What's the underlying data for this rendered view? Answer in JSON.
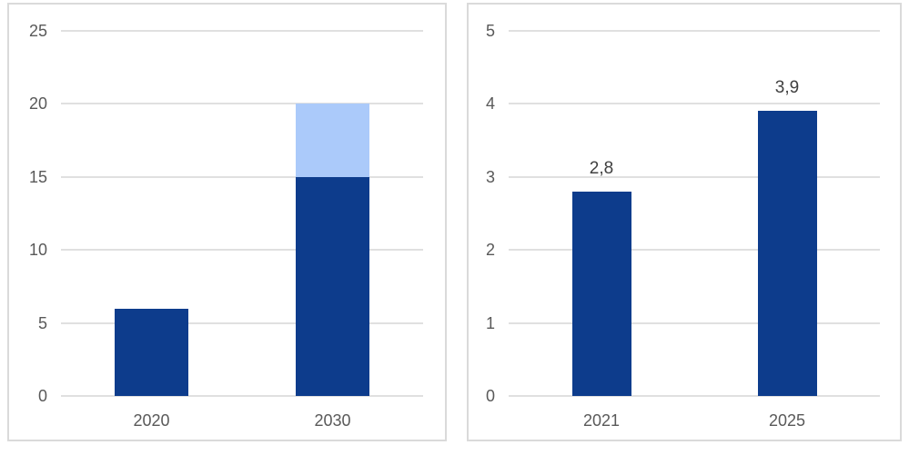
{
  "page": {
    "background": "#ffffff"
  },
  "styles": {
    "panel_border_color": "#dadada",
    "grid_color": "#e0e0e0",
    "tick_label_color": "#595959",
    "value_label_color": "#404040",
    "bar_dark_blue": "#0d3c8c",
    "bar_light_blue": "#abcafa"
  },
  "chart_data": [
    {
      "type": "bar",
      "stacked": true,
      "title": "",
      "categories": [
        "2020",
        "2030"
      ],
      "series": [
        {
          "name": "dark-blue-series",
          "color": "#0d3c8c",
          "values": [
            6,
            15
          ]
        },
        {
          "name": "light-blue-series",
          "color": "#abcafa",
          "values": [
            0,
            5
          ]
        }
      ],
      "value_labels": [
        "",
        ""
      ],
      "xlabel": "",
      "ylabel": "",
      "ylim": [
        0,
        25
      ],
      "yticks": [
        0,
        5,
        10,
        15,
        20,
        25
      ],
      "grid": true,
      "legend": "none"
    },
    {
      "type": "bar",
      "stacked": false,
      "title": "",
      "categories": [
        "2021",
        "2025"
      ],
      "series": [
        {
          "name": "dark-blue-series",
          "color": "#0d3c8c",
          "values": [
            2.8,
            3.9
          ]
        }
      ],
      "value_labels": [
        "2,8",
        "3,9"
      ],
      "xlabel": "",
      "ylabel": "",
      "ylim": [
        0,
        5
      ],
      "yticks": [
        0,
        1,
        2,
        3,
        4,
        5
      ],
      "grid": true,
      "legend": "none"
    }
  ]
}
